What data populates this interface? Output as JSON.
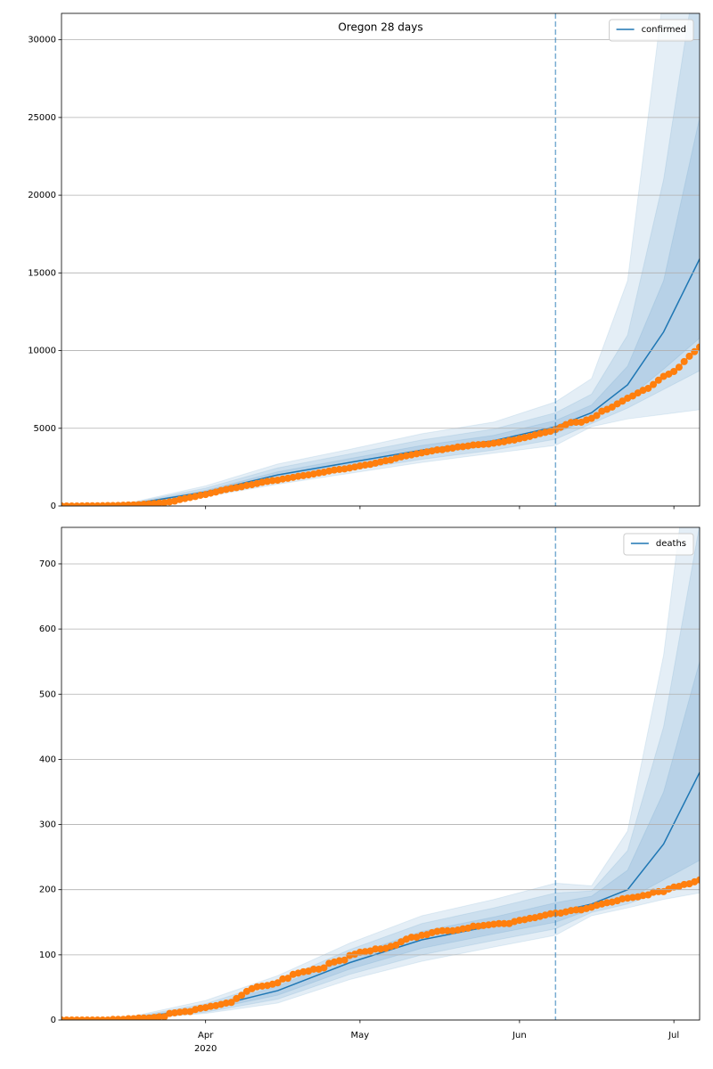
{
  "chart_data": [
    {
      "type": "line",
      "title": "Oregon 28 days",
      "xlim": [
        64,
        188
      ],
      "xticks": [
        92,
        122,
        153,
        183
      ],
      "ylim": [
        0,
        31700
      ],
      "yticks": [
        0,
        5000,
        10000,
        15000,
        20000,
        25000,
        30000
      ],
      "grid": "y",
      "legend": "upper right",
      "vline": 160,
      "vline_color": "#1f77b4",
      "series": [
        {
          "name": "confirmed",
          "color": "#1f77b4",
          "x": [
            64,
            78,
            92,
            106,
            120,
            134,
            148,
            160,
            167,
            174,
            181,
            188
          ],
          "values": [
            0,
            150,
            900,
            2000,
            2800,
            3600,
            4200,
            5100,
            6000,
            7800,
            11200,
            15900
          ],
          "bands": [
            {
              "lower": [
                0,
                80,
                600,
                1400,
                2100,
                2800,
                3400,
                3900,
                5100,
                5600,
                5900,
                6200
              ],
              "upper": [
                0,
                260,
                1300,
                2700,
                3650,
                4650,
                5400,
                6700,
                8200,
                14500,
                33000,
                50000
              ]
            },
            {
              "lower": [
                0,
                100,
                700,
                1600,
                2300,
                3000,
                3600,
                4300,
                5300,
                6300,
                7500,
                8700
              ],
              "upper": [
                0,
                220,
                1150,
                2450,
                3350,
                4250,
                4950,
                6000,
                7200,
                11000,
                21000,
                36000
              ]
            },
            {
              "lower": [
                0,
                120,
                800,
                1800,
                2550,
                3300,
                3900,
                4700,
                5600,
                6900,
                8800,
                10800
              ],
              "upper": [
                0,
                180,
                1000,
                2200,
                3050,
                3900,
                4550,
                5500,
                6500,
                9000,
                14500,
                25000
              ]
            }
          ]
        },
        {
          "color": "#ff7f0e",
          "marker": "o",
          "x": [
            64,
            65,
            66,
            67,
            68,
            69,
            70,
            71,
            72,
            73,
            74,
            75,
            76,
            77,
            78,
            79,
            80,
            81,
            82,
            83,
            84,
            85,
            86,
            87,
            88,
            89,
            90,
            91,
            92,
            93,
            94,
            95,
            96,
            97,
            98,
            99,
            100,
            101,
            102,
            103,
            104,
            105,
            106,
            107,
            108,
            109,
            110,
            111,
            112,
            113,
            114,
            115,
            116,
            117,
            118,
            119,
            120,
            121,
            122,
            123,
            124,
            125,
            126,
            127,
            128,
            129,
            130,
            131,
            132,
            133,
            134,
            135,
            136,
            137,
            138,
            139,
            140,
            141,
            142,
            143,
            144,
            145,
            146,
            147,
            148,
            149,
            150,
            151,
            152,
            153,
            154,
            155,
            156,
            157,
            158,
            159,
            160,
            161,
            162,
            163,
            164,
            165,
            166,
            167,
            168,
            169,
            170,
            171,
            172,
            173,
            174,
            175,
            176,
            177,
            178,
            179,
            180,
            181,
            182,
            183,
            184,
            185,
            186,
            187,
            188
          ],
          "values": [
            3,
            3,
            3,
            3,
            7,
            14,
            14,
            15,
            19,
            30,
            32,
            39,
            47,
            65,
            75,
            88,
            114,
            137,
            161,
            191,
            209,
            266,
            316,
            414,
            479,
            548,
            606,
            690,
            736,
            826,
            899,
            999,
            1068,
            1132,
            1181,
            1239,
            1321,
            1371,
            1447,
            1527,
            1584,
            1633,
            1663,
            1736,
            1785,
            1844,
            1910,
            1956,
            2002,
            2059,
            2127,
            2177,
            2253,
            2311,
            2354,
            2385,
            2446,
            2510,
            2579,
            2635,
            2680,
            2759,
            2839,
            2916,
            2960,
            3068,
            3160,
            3228,
            3286,
            3358,
            3416,
            3479,
            3541,
            3612,
            3623,
            3687,
            3726,
            3801,
            3817,
            3864,
            3927,
            3949,
            3967,
            3987,
            4038,
            4086,
            4131,
            4214,
            4243,
            4335,
            4399,
            4475,
            4570,
            4662,
            4735,
            4808,
            4923,
            5068,
            5237,
            5377,
            5390,
            5390,
            5535,
            5636,
            5820,
            6098,
            6218,
            6366,
            6572,
            6750,
            6937,
            7083,
            7274,
            7444,
            7568,
            7818,
            8094,
            8341,
            8485,
            8656,
            8931,
            9294,
            9636,
            9930,
            10226
          ]
        }
      ]
    },
    {
      "type": "line",
      "xlim": [
        64,
        188
      ],
      "xticks": [
        {
          "value": 92,
          "label": "Apr"
        },
        {
          "value": 122,
          "label": "May"
        },
        {
          "value": 153,
          "label": "Jun"
        },
        {
          "value": 183,
          "label": "Jul"
        }
      ],
      "x_sublabel": "2020",
      "ylim": [
        0,
        756
      ],
      "yticks": [
        0,
        100,
        200,
        300,
        400,
        500,
        600,
        700
      ],
      "grid": "y",
      "legend": "upper right",
      "vline": 160,
      "vline_color": "#1f77b4",
      "series": [
        {
          "name": "deaths",
          "color": "#1f77b4",
          "x": [
            64,
            78,
            92,
            106,
            120,
            134,
            148,
            160,
            167,
            174,
            181,
            188
          ],
          "values": [
            0,
            3,
            18,
            45,
            88,
            123,
            145,
            165,
            178,
            200,
            270,
            380
          ],
          "bands": [
            {
              "lower": [
                0,
                1,
                10,
                26,
                62,
                90,
                112,
                130,
                160,
                172,
                185,
                195
              ],
              "upper": [
                0,
                6,
                30,
                68,
                118,
                160,
                185,
                210,
                206,
                290,
                560,
                1000
              ]
            },
            {
              "lower": [
                0,
                1,
                12,
                32,
                70,
                100,
                122,
                140,
                165,
                178,
                198,
                215
              ],
              "upper": [
                0,
                5,
                25,
                60,
                108,
                148,
                172,
                195,
                198,
                260,
                450,
                760
              ]
            },
            {
              "lower": [
                0,
                2,
                15,
                38,
                78,
                110,
                132,
                150,
                170,
                185,
                215,
                245
              ],
              "upper": [
                0,
                4,
                21,
                52,
                98,
                136,
                158,
                180,
                190,
                230,
                350,
                550
              ]
            }
          ]
        },
        {
          "color": "#ff7f0e",
          "marker": "o",
          "x": [
            64,
            65,
            66,
            67,
            68,
            69,
            70,
            71,
            72,
            73,
            74,
            75,
            76,
            77,
            78,
            79,
            80,
            81,
            82,
            83,
            84,
            85,
            86,
            87,
            88,
            89,
            90,
            91,
            92,
            93,
            94,
            95,
            96,
            97,
            98,
            99,
            100,
            101,
            102,
            103,
            104,
            105,
            106,
            107,
            108,
            109,
            110,
            111,
            112,
            113,
            114,
            115,
            116,
            117,
            118,
            119,
            120,
            121,
            122,
            123,
            124,
            125,
            126,
            127,
            128,
            129,
            130,
            131,
            132,
            133,
            134,
            135,
            136,
            137,
            138,
            139,
            140,
            141,
            142,
            143,
            144,
            145,
            146,
            147,
            148,
            149,
            150,
            151,
            152,
            153,
            154,
            155,
            156,
            157,
            158,
            159,
            160,
            161,
            162,
            163,
            164,
            165,
            166,
            167,
            168,
            169,
            170,
            171,
            172,
            173,
            174,
            175,
            176,
            177,
            178,
            179,
            180,
            181,
            182,
            183,
            184,
            185,
            186,
            187,
            188
          ],
          "values": [
            0,
            0,
            0,
            0,
            0,
            0,
            0,
            0,
            0,
            0,
            1,
            1,
            1,
            2,
            2,
            3,
            3,
            3,
            4,
            5,
            5,
            10,
            11,
            12,
            13,
            13,
            16,
            18,
            19,
            21,
            22,
            24,
            26,
            27,
            33,
            38,
            44,
            48,
            51,
            52,
            53,
            55,
            57,
            63,
            64,
            70,
            72,
            74,
            75,
            78,
            78,
            80,
            87,
            89,
            91,
            92,
            99,
            101,
            104,
            105,
            106,
            109,
            109,
            110,
            113,
            115,
            120,
            124,
            127,
            127,
            130,
            131,
            134,
            136,
            137,
            137,
            137,
            138,
            140,
            141,
            144,
            144,
            145,
            146,
            147,
            148,
            148,
            148,
            151,
            153,
            154,
            156,
            157,
            159,
            161,
            163,
            164,
            164,
            166,
            168,
            169,
            169,
            171,
            173,
            176,
            178,
            180,
            181,
            183,
            186,
            187,
            188,
            189,
            191,
            192,
            196,
            197,
            197,
            201,
            204,
            205,
            208,
            209,
            212,
            215
          ]
        }
      ]
    }
  ]
}
